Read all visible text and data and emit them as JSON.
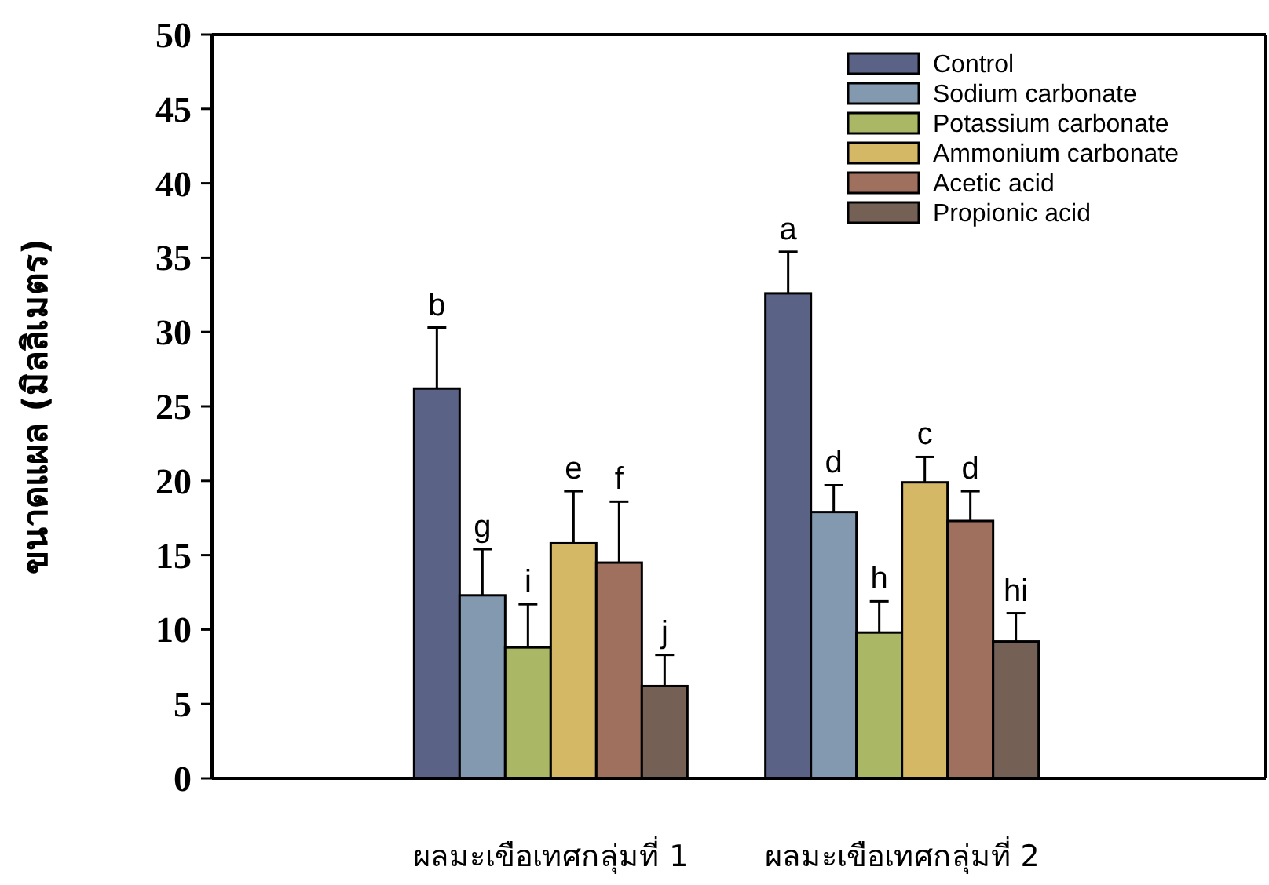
{
  "chart_data": {
    "type": "bar",
    "ylabel": "ขนาดแผล (มิลลิเมตร)",
    "categories": [
      "ผลมะเขือเทศกลุ่มที่ 1",
      "ผลมะเขือเทศกลุ่มที่ 2"
    ],
    "series": [
      {
        "name": "Control",
        "color": "#5a6385",
        "values": [
          26.2,
          32.6
        ],
        "errors": [
          4.1,
          2.8
        ]
      },
      {
        "name": "Sodium carbonate",
        "color": "#8299b0",
        "values": [
          12.3,
          17.9
        ],
        "errors": [
          3.1,
          1.8
        ]
      },
      {
        "name": "Potassium carbonate",
        "color": "#aab765",
        "values": [
          8.8,
          9.8
        ],
        "errors": [
          2.9,
          2.1
        ]
      },
      {
        "name": "Ammonium carbonate",
        "color": "#d4b865",
        "values": [
          15.8,
          19.9
        ],
        "errors": [
          3.5,
          1.7
        ]
      },
      {
        "name": "Acetic acid",
        "color": "#a0705e",
        "values": [
          14.5,
          17.3
        ],
        "errors": [
          4.1,
          2.0
        ]
      },
      {
        "name": "Propionic acid",
        "color": "#756055",
        "values": [
          6.2,
          9.2
        ],
        "errors": [
          2.1,
          1.9
        ]
      }
    ],
    "annotations": [
      "b",
      "g",
      "i",
      "e",
      "f",
      "j",
      "a",
      "d",
      "h",
      "c",
      "d",
      "hi"
    ],
    "ylim": [
      0,
      50
    ],
    "yticks": [
      0,
      5,
      10,
      15,
      20,
      25,
      30,
      35,
      40,
      45,
      50
    ],
    "grid": false,
    "legend": "top right"
  }
}
